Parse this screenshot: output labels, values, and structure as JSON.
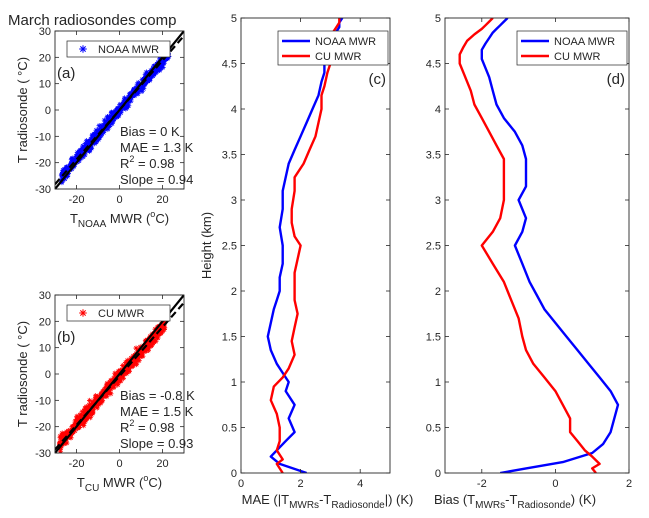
{
  "figure": {
    "title": "March radiosondes comp"
  },
  "chart_data": [
    {
      "id": "a",
      "type": "scatter",
      "panel_label": "(a)",
      "xlabel": {
        "main": "T",
        "sub": "NOAA",
        "rest": " MWR (",
        "sup": "o",
        "end": "C)"
      },
      "ylabel": "T radiosonde ( °C)",
      "xlim": [
        -30,
        30
      ],
      "ylim": [
        -30,
        30
      ],
      "xticks": [
        -20,
        0,
        20
      ],
      "yticks": [
        -30,
        -20,
        -10,
        0,
        10,
        20,
        30
      ],
      "legend": [
        {
          "name": "NOAA MWR",
          "color": "#0000ff",
          "marker": "*"
        }
      ],
      "legend_position": "top-left",
      "color": "#0000ff",
      "cloud": {
        "x_range": [
          -27,
          23
        ],
        "slope": 0.94,
        "intercept": 0,
        "spread": 2.2,
        "count": 650
      },
      "lines": [
        {
          "type": "one-to-one",
          "style": "solid",
          "color": "#000000"
        },
        {
          "type": "fit",
          "style": "dashed",
          "color": "#000000",
          "slope": 0.94,
          "intercept": 0
        }
      ],
      "stats": [
        "Bias = 0 K",
        "MAE = 1.3 K",
        "R",
        "Slope = 0.94"
      ],
      "r2": {
        "label": "R",
        "sup": "2",
        "value": " = 0.98"
      }
    },
    {
      "id": "b",
      "type": "scatter",
      "panel_label": "(b)",
      "xlabel": {
        "main": "T",
        "sub": "CU",
        "rest": " MWR (",
        "sup": "o",
        "end": "C)"
      },
      "ylabel": "T radiosonde ( °C)",
      "xlim": [
        -30,
        30
      ],
      "ylim": [
        -30,
        30
      ],
      "xticks": [
        -20,
        0,
        20
      ],
      "yticks": [
        -30,
        -20,
        -10,
        0,
        10,
        20,
        30
      ],
      "legend": [
        {
          "name": "CU MWR",
          "color": "#ff0000",
          "marker": "*"
        }
      ],
      "legend_position": "top-left",
      "color": "#ff0000",
      "cloud": {
        "x_range": [
          -28,
          21
        ],
        "slope": 0.93,
        "intercept": -0.8,
        "spread": 2.5,
        "count": 650
      },
      "lines": [
        {
          "type": "one-to-one",
          "style": "solid",
          "color": "#000000"
        },
        {
          "type": "fit",
          "style": "dashed",
          "color": "#000000",
          "slope": 0.93,
          "intercept": -0.8
        }
      ],
      "stats": [
        "Bias = -0.8 K",
        "MAE = 1.5 K",
        "R",
        "Slope = 0.93"
      ],
      "r2": {
        "label": "R",
        "sup": "2",
        "value": " = 0.98"
      }
    },
    {
      "id": "c",
      "type": "line",
      "panel_label": "(c)",
      "xlabel": "MAE (|T_MWRs-T_Radiosonde|) (K)",
      "ylabel": "Height (km)",
      "xlim": [
        0,
        5
      ],
      "ylim": [
        0,
        5
      ],
      "xticks": [
        0,
        2,
        4
      ],
      "yticks": [
        0,
        0.5,
        1,
        1.5,
        2,
        2.5,
        3,
        3.5,
        4,
        4.5,
        5
      ],
      "legend_position": "top-right",
      "series": [
        {
          "name": "NOAA MWR",
          "color": "#0000ff",
          "x": [
            2.2,
            1.3,
            1.0,
            1.2,
            1.5,
            1.8,
            1.6,
            1.8,
            1.5,
            1.6,
            1.4,
            1.2,
            1.0,
            0.9,
            1.0,
            1.1,
            1.2,
            1.3,
            1.3,
            1.4,
            1.4,
            1.3,
            1.4,
            1.4,
            1.5,
            1.6,
            1.8,
            2.0,
            2.2,
            2.4,
            2.6,
            2.7,
            2.8,
            2.8,
            2.9,
            3.0,
            3.1,
            3.2,
            3.3,
            3.3,
            3.4
          ],
          "y": [
            0,
            0.1,
            0.18,
            0.25,
            0.35,
            0.45,
            0.6,
            0.75,
            0.9,
            1.0,
            1.1,
            1.2,
            1.35,
            1.5,
            1.65,
            1.8,
            1.9,
            2.0,
            2.15,
            2.3,
            2.5,
            2.7,
            2.9,
            3.1,
            3.25,
            3.4,
            3.55,
            3.7,
            3.85,
            4.0,
            4.15,
            4.3,
            4.4,
            4.5,
            4.6,
            4.7,
            4.8,
            4.85,
            4.9,
            4.95,
            5.0
          ]
        },
        {
          "name": "CU MWR",
          "color": "#ff0000",
          "x": [
            1.4,
            1.2,
            1.4,
            1.2,
            1.3,
            1.3,
            1.2,
            1.0,
            1.1,
            1.4,
            1.6,
            1.8,
            1.7,
            1.8,
            1.9,
            1.8,
            1.8,
            1.8,
            1.9,
            2.0,
            1.8,
            1.7,
            1.7,
            1.8,
            1.8,
            2.1,
            2.3,
            2.5,
            2.6,
            2.7,
            2.7,
            2.8,
            2.9,
            3.0,
            3.0,
            3.0,
            3.1,
            3.1,
            3.2,
            3.3,
            3.3
          ],
          "y": [
            0,
            0.1,
            0.15,
            0.25,
            0.35,
            0.5,
            0.65,
            0.8,
            0.95,
            1.05,
            1.15,
            1.3,
            1.45,
            1.6,
            1.75,
            1.9,
            2.05,
            2.2,
            2.35,
            2.5,
            2.6,
            2.75,
            2.9,
            3.1,
            3.25,
            3.4,
            3.55,
            3.7,
            3.85,
            4.0,
            4.15,
            4.25,
            4.4,
            4.5,
            4.6,
            4.7,
            4.8,
            4.85,
            4.9,
            4.95,
            5.0
          ]
        }
      ]
    },
    {
      "id": "d",
      "type": "line",
      "panel_label": "(d)",
      "xlabel": "Bias (T_MWRs-T_Radiosonde) (K)",
      "ylabel": "",
      "xlim": [
        -3,
        2
      ],
      "ylim": [
        0,
        5
      ],
      "xticks": [
        -2,
        0,
        2
      ],
      "yticks": [
        0,
        0.5,
        1,
        1.5,
        2,
        2.5,
        3,
        3.5,
        4,
        4.5,
        5
      ],
      "legend_position": "top-right",
      "series": [
        {
          "name": "NOAA MWR",
          "color": "#0000ff",
          "x": [
            -1.5,
            -0.8,
            0.2,
            1.0,
            1.3,
            1.5,
            1.6,
            1.7,
            1.5,
            1.2,
            0.9,
            0.6,
            0.3,
            0.0,
            -0.3,
            -0.5,
            -0.7,
            -0.9,
            -1.1,
            -0.9,
            -0.8,
            -1.0,
            -0.8,
            -0.8,
            -0.8,
            -0.9,
            -1.1,
            -1.4,
            -1.6,
            -1.7,
            -1.8,
            -1.9,
            -2.0,
            -2.0,
            -1.9,
            -1.8,
            -1.7,
            -1.6,
            -1.5,
            -1.4,
            -1.3
          ],
          "y": [
            0,
            0.05,
            0.12,
            0.22,
            0.32,
            0.45,
            0.6,
            0.75,
            0.9,
            1.05,
            1.2,
            1.35,
            1.5,
            1.65,
            1.8,
            1.95,
            2.1,
            2.3,
            2.5,
            2.65,
            2.8,
            3.0,
            3.15,
            3.3,
            3.45,
            3.6,
            3.75,
            3.9,
            4.05,
            4.2,
            4.35,
            4.45,
            4.55,
            4.65,
            4.72,
            4.78,
            4.84,
            4.88,
            4.92,
            4.96,
            5.0
          ]
        },
        {
          "name": "CU MWR",
          "color": "#ff0000",
          "x": [
            1.1,
            1.0,
            1.2,
            1.0,
            0.8,
            0.6,
            0.4,
            0.4,
            0.2,
            0.0,
            -0.3,
            -0.6,
            -0.8,
            -0.9,
            -1.0,
            -1.2,
            -1.4,
            -1.7,
            -2.0,
            -1.7,
            -1.5,
            -1.4,
            -1.4,
            -1.4,
            -1.4,
            -1.6,
            -1.8,
            -2.0,
            -2.2,
            -2.3,
            -2.4,
            -2.5,
            -2.6,
            -2.6,
            -2.5,
            -2.4,
            -2.2,
            -2.0,
            -1.9,
            -1.8,
            -1.7
          ],
          "y": [
            0,
            0.05,
            0.1,
            0.18,
            0.25,
            0.35,
            0.45,
            0.6,
            0.75,
            0.9,
            1.05,
            1.2,
            1.35,
            1.5,
            1.7,
            1.9,
            2.1,
            2.3,
            2.5,
            2.65,
            2.8,
            3.0,
            3.15,
            3.3,
            3.45,
            3.6,
            3.75,
            3.9,
            4.05,
            4.2,
            4.3,
            4.4,
            4.5,
            4.6,
            4.68,
            4.75,
            4.82,
            4.88,
            4.92,
            4.96,
            5.0
          ]
        }
      ]
    }
  ]
}
